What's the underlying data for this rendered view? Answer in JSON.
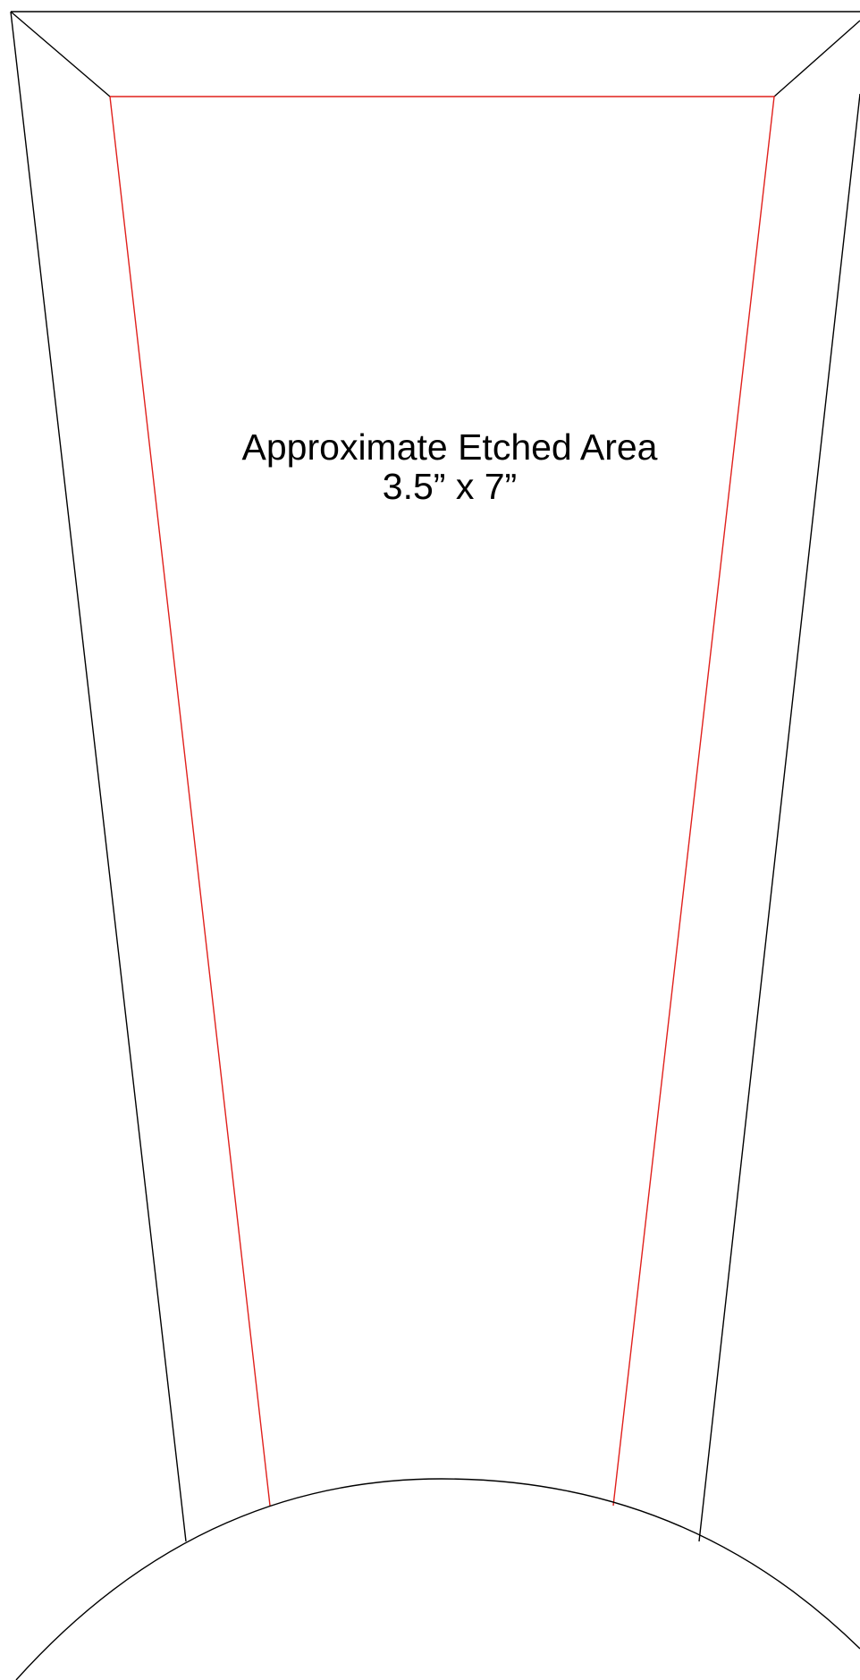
{
  "diagram": {
    "title": "Approximate Etched Area",
    "dimensions": "3.5” x 7”",
    "colors": {
      "outline": "#000000",
      "etched_area": "#e0201c",
      "background": "#ffffff"
    }
  }
}
